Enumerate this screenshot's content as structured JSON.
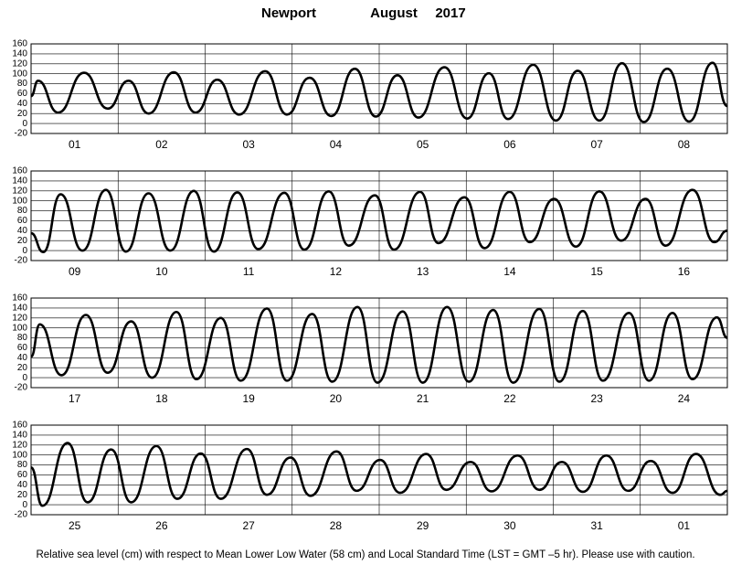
{
  "title": {
    "station": "Newport",
    "month": "August",
    "year": "2017"
  },
  "footnote": "Relative sea level (cm) with respect to Mean Lower Low Water (58 cm) and Local Standard Time (LST = GMT –5 hr). Please use with caution.",
  "chart_data": [
    {
      "type": "line",
      "categories": [
        "01",
        "02",
        "03",
        "04",
        "05",
        "06",
        "07",
        "08"
      ],
      "xlim": [
        0,
        8
      ],
      "xticks": [
        0,
        1,
        2,
        3,
        4,
        5,
        6,
        7,
        8
      ],
      "ylim": [
        -20,
        160
      ],
      "yticks": [
        -20,
        0,
        20,
        40,
        60,
        80,
        100,
        120,
        140,
        160
      ],
      "grid": true,
      "x": [
        0,
        0.08,
        0.31,
        0.61,
        0.88,
        1.12,
        1.35,
        1.64,
        1.89,
        2.14,
        2.39,
        2.69,
        2.94,
        3.2,
        3.45,
        3.72,
        3.96,
        4.21,
        4.45,
        4.75,
        5.01,
        5.26,
        5.48,
        5.77,
        6.03,
        6.28,
        6.53,
        6.79,
        7.04,
        7.31,
        7.56,
        7.83,
        8
      ],
      "series": [
        {
          "color": "#000000",
          "values": [
            55,
            86,
            22,
            102,
            30,
            86,
            20,
            103,
            22,
            88,
            18,
            105,
            18,
            92,
            15,
            110,
            14,
            97,
            12,
            113,
            10,
            101,
            9,
            118,
            6,
            106,
            6,
            121,
            3,
            110,
            4,
            122,
            35
          ]
        }
      ]
    },
    {
      "type": "line",
      "categories": [
        "09",
        "10",
        "11",
        "12",
        "13",
        "14",
        "15",
        "16"
      ],
      "xlim": [
        0,
        8
      ],
      "xticks": [
        0,
        1,
        2,
        3,
        4,
        5,
        6,
        7,
        8
      ],
      "ylim": [
        -20,
        160
      ],
      "yticks": [
        -20,
        0,
        20,
        40,
        60,
        80,
        100,
        120,
        140,
        160
      ],
      "grid": true,
      "x": [
        0,
        0.14,
        0.34,
        0.59,
        0.86,
        1.09,
        1.35,
        1.6,
        1.87,
        2.1,
        2.37,
        2.61,
        2.91,
        3.14,
        3.42,
        3.65,
        3.95,
        4.17,
        4.47,
        4.68,
        4.98,
        5.21,
        5.5,
        5.73,
        6.01,
        6.26,
        6.53,
        6.78,
        7.06,
        7.29,
        7.6,
        7.85,
        8
      ],
      "series": [
        {
          "color": "#000000",
          "values": [
            35,
            -3,
            113,
            0,
            122,
            -2,
            115,
            0,
            120,
            -2,
            117,
            3,
            116,
            2,
            119,
            10,
            111,
            2,
            118,
            15,
            107,
            5,
            118,
            17,
            104,
            8,
            119,
            20,
            104,
            10,
            122,
            17,
            40
          ]
        }
      ]
    },
    {
      "type": "line",
      "categories": [
        "17",
        "18",
        "19",
        "20",
        "21",
        "22",
        "23",
        "24"
      ],
      "xlim": [
        0,
        8
      ],
      "xticks": [
        0,
        1,
        2,
        3,
        4,
        5,
        6,
        7,
        8
      ],
      "ylim": [
        -20,
        160
      ],
      "yticks": [
        -20,
        0,
        20,
        40,
        60,
        80,
        100,
        120,
        140,
        160
      ],
      "grid": true,
      "x": [
        0,
        0.1,
        0.35,
        0.63,
        0.88,
        1.15,
        1.39,
        1.67,
        1.9,
        2.18,
        2.41,
        2.71,
        2.94,
        3.23,
        3.46,
        3.75,
        3.98,
        4.27,
        4.5,
        4.78,
        5.03,
        5.31,
        5.54,
        5.84,
        6.07,
        6.34,
        6.57,
        6.87,
        7.1,
        7.37,
        7.6,
        7.88,
        8
      ],
      "series": [
        {
          "color": "#000000",
          "values": [
            42,
            107,
            5,
            126,
            10,
            113,
            0,
            132,
            -3,
            120,
            -6,
            139,
            -6,
            128,
            -8,
            142,
            -10,
            133,
            -10,
            142,
            -8,
            136,
            -10,
            138,
            -8,
            134,
            -6,
            130,
            -6,
            130,
            -3,
            121,
            80
          ]
        }
      ]
    },
    {
      "type": "line",
      "categories": [
        "25",
        "26",
        "27",
        "28",
        "29",
        "30",
        "31",
        "01"
      ],
      "xlim": [
        0,
        8
      ],
      "xticks": [
        0,
        1,
        2,
        3,
        4,
        5,
        6,
        7,
        8
      ],
      "ylim": [
        -20,
        160
      ],
      "yticks": [
        -20,
        0,
        20,
        40,
        60,
        80,
        100,
        120,
        140,
        160
      ],
      "grid": true,
      "x": [
        0,
        0.13,
        0.42,
        0.65,
        0.92,
        1.15,
        1.44,
        1.68,
        1.95,
        2.18,
        2.48,
        2.71,
        2.98,
        3.21,
        3.51,
        3.74,
        4.01,
        4.24,
        4.54,
        4.77,
        5.05,
        5.29,
        5.59,
        5.84,
        6.1,
        6.34,
        6.61,
        6.86,
        7.12,
        7.37,
        7.64,
        7.92,
        8
      ],
      "series": [
        {
          "color": "#000000",
          "values": [
            75,
            -2,
            124,
            5,
            111,
            5,
            118,
            12,
            103,
            12,
            112,
            20,
            95,
            18,
            107,
            28,
            90,
            24,
            102,
            30,
            86,
            27,
            99,
            30,
            86,
            26,
            99,
            28,
            88,
            24,
            102,
            20,
            28
          ]
        }
      ]
    }
  ]
}
